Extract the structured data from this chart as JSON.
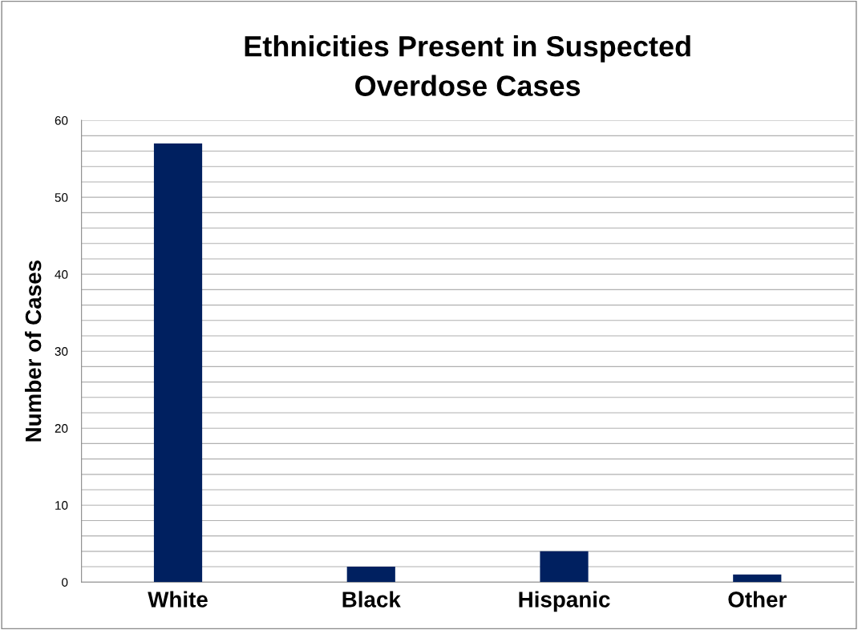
{
  "chart_data": {
    "type": "bar",
    "title": "Ethnicities Present in Suspected\nOverdose Cases",
    "ylabel": "Number of Cases",
    "categories": [
      "White",
      "Black",
      "Hispanic",
      "Other"
    ],
    "values": [
      57,
      2,
      4,
      1
    ],
    "color": "#002060",
    "ylim": [
      0,
      60
    ],
    "yticks": [
      0,
      {
        "value": 2,
        "label": null
      },
      {
        "value": 4,
        "label": null
      },
      {
        "value": 6,
        "label": null
      },
      {
        "value": 8,
        "label": null
      },
      10,
      {
        "value": 12,
        "label": null
      },
      {
        "value": 14,
        "label": null
      },
      {
        "value": 16,
        "label": null
      },
      {
        "value": 18,
        "label": null
      },
      20,
      {
        "value": 22,
        "label": null
      },
      {
        "value": 24,
        "label": null
      },
      {
        "value": 26,
        "label": null
      },
      {
        "value": 28,
        "label": null
      },
      30,
      {
        "value": 32,
        "label": null
      },
      {
        "value": 34,
        "label": null
      },
      {
        "value": 36,
        "label": null
      },
      {
        "value": 38,
        "label": null
      },
      40,
      {
        "value": 42,
        "label": null
      },
      {
        "value": 44,
        "label": null
      },
      {
        "value": 46,
        "label": null
      },
      {
        "value": 48,
        "label": null
      },
      50,
      {
        "value": 52,
        "label": null
      },
      {
        "value": 54,
        "label": null
      },
      {
        "value": 56,
        "label": null
      },
      {
        "value": 58,
        "label": null
      },
      60
    ],
    "grid": "y"
  }
}
